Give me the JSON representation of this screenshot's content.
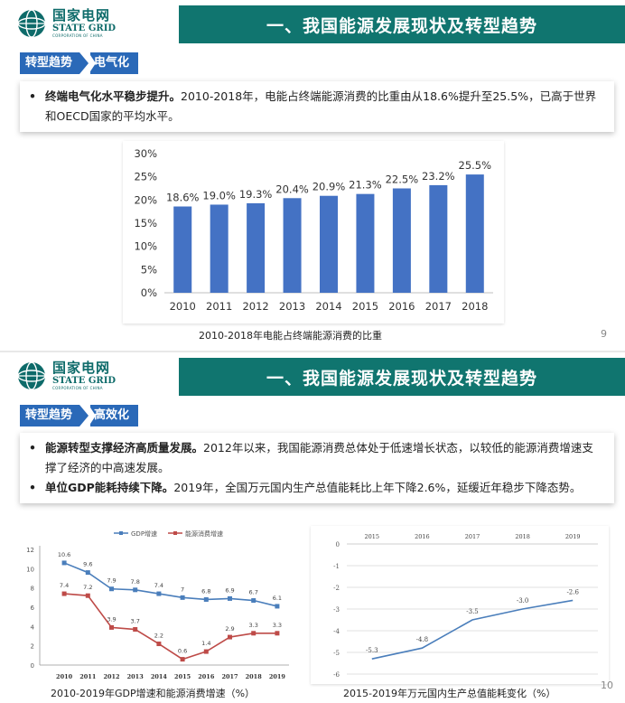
{
  "slide1": {
    "logo": {
      "cn": "国家电网",
      "en": "STATE GRID",
      "sub": "CORPORATION OF CHINA"
    },
    "title": "一、我国能源发展现状及转型趋势",
    "breadcrumb": {
      "section": "转型趋势",
      "topic": "电气化"
    },
    "bullets": [
      {
        "marker": "•",
        "bold": "终端电气化水平稳步提升。",
        "text": "2010-2018年，电能占终端能源消费的比重由从18.6%提升至25.5%，已高于世界和OECD国家的平均水平。"
      }
    ],
    "caption": "2010-2018年电能占终端能源消费的比重",
    "page_number": "9"
  },
  "slide2": {
    "logo": {
      "cn": "国家电网",
      "en": "STATE GRID",
      "sub": "CORPORATION OF CHINA"
    },
    "title": "一、我国能源发展现状及转型趋势",
    "breadcrumb": {
      "section": "转型趋势",
      "topic": "高效化"
    },
    "bullets": [
      {
        "marker": "•",
        "bold": "能源转型支撑经济高质量发展。",
        "text": "2012年以来，我国能源消费总体处于低速增长状态，以较低的能源消费增速支撑了经济的中高速发展。"
      },
      {
        "marker": "•",
        "bold": "单位GDP能耗持续下降。",
        "text": "2019年，全国万元国内生产总值能耗比上年下降2.6%，延缓近年稳步下降态势。"
      }
    ],
    "caption_left": "2010-2019年GDP增速和能源消费增速（%）",
    "caption_right": "2015-2019年万元国内生产总值能耗变化（%）",
    "page_number": "10"
  },
  "chart_data": [
    {
      "type": "bar",
      "title": "",
      "categories": [
        "2010",
        "2011",
        "2012",
        "2013",
        "2014",
        "2015",
        "2016",
        "2017",
        "2018"
      ],
      "values": [
        18.6,
        19.0,
        19.3,
        20.4,
        20.9,
        21.3,
        22.5,
        23.2,
        25.5
      ],
      "data_labels": [
        "18.6%",
        "19.0%",
        "19.3%",
        "20.4%",
        "20.9%",
        "21.3%",
        "22.5%",
        "23.2%",
        "25.5%"
      ],
      "yticks": [
        "0%",
        "5%",
        "10%",
        "15%",
        "20%",
        "25%",
        "30%"
      ],
      "ylim": [
        0,
        30
      ],
      "grid": false,
      "color": "#4472c4"
    },
    {
      "type": "line",
      "categories": [
        "2010",
        "2011",
        "2012",
        "2013",
        "2014",
        "2015",
        "2016",
        "2017",
        "2018",
        "2019"
      ],
      "series": [
        {
          "name": "GDP增速",
          "values": [
            10.6,
            9.6,
            7.9,
            7.8,
            7.4,
            7.0,
            6.8,
            6.9,
            6.7,
            6.1
          ],
          "labels": [
            "10.6",
            "9.6",
            "7.9",
            "7.8",
            "7.4",
            "7",
            "6.8",
            "6.9",
            "6.7",
            "6.1"
          ],
          "color": "#4a7ebb"
        },
        {
          "name": "能源消费增速",
          "values": [
            7.4,
            7.2,
            3.9,
            3.7,
            2.2,
            0.6,
            1.4,
            2.9,
            3.3,
            3.3
          ],
          "labels": [
            "7.4",
            "7.2",
            "3.9",
            "3.7",
            "2.2",
            "0.6",
            "1.4",
            "2.9",
            "3.3",
            "3.3"
          ],
          "color": "#be4b48"
        }
      ],
      "yticks": [
        "0",
        "2",
        "4",
        "6",
        "8",
        "10",
        "12"
      ],
      "ylim": [
        0,
        12
      ],
      "legend": "top",
      "grid": false
    },
    {
      "type": "line",
      "categories": [
        "2015",
        "2016",
        "2017",
        "2018",
        "2019"
      ],
      "series": [
        {
          "values": [
            -5.3,
            -4.8,
            -3.5,
            -3.0,
            -2.6
          ],
          "labels": [
            "-5.3",
            "-4.8",
            "-3.5",
            "-3.0",
            "-2.6"
          ],
          "color": "#4a7ebb"
        }
      ],
      "yticks": [
        "0",
        "-1",
        "-2",
        "-3",
        "-4",
        "-5",
        "-6"
      ],
      "ylim": [
        -6,
        0
      ],
      "x_axis_position": "top",
      "grid": true
    }
  ]
}
